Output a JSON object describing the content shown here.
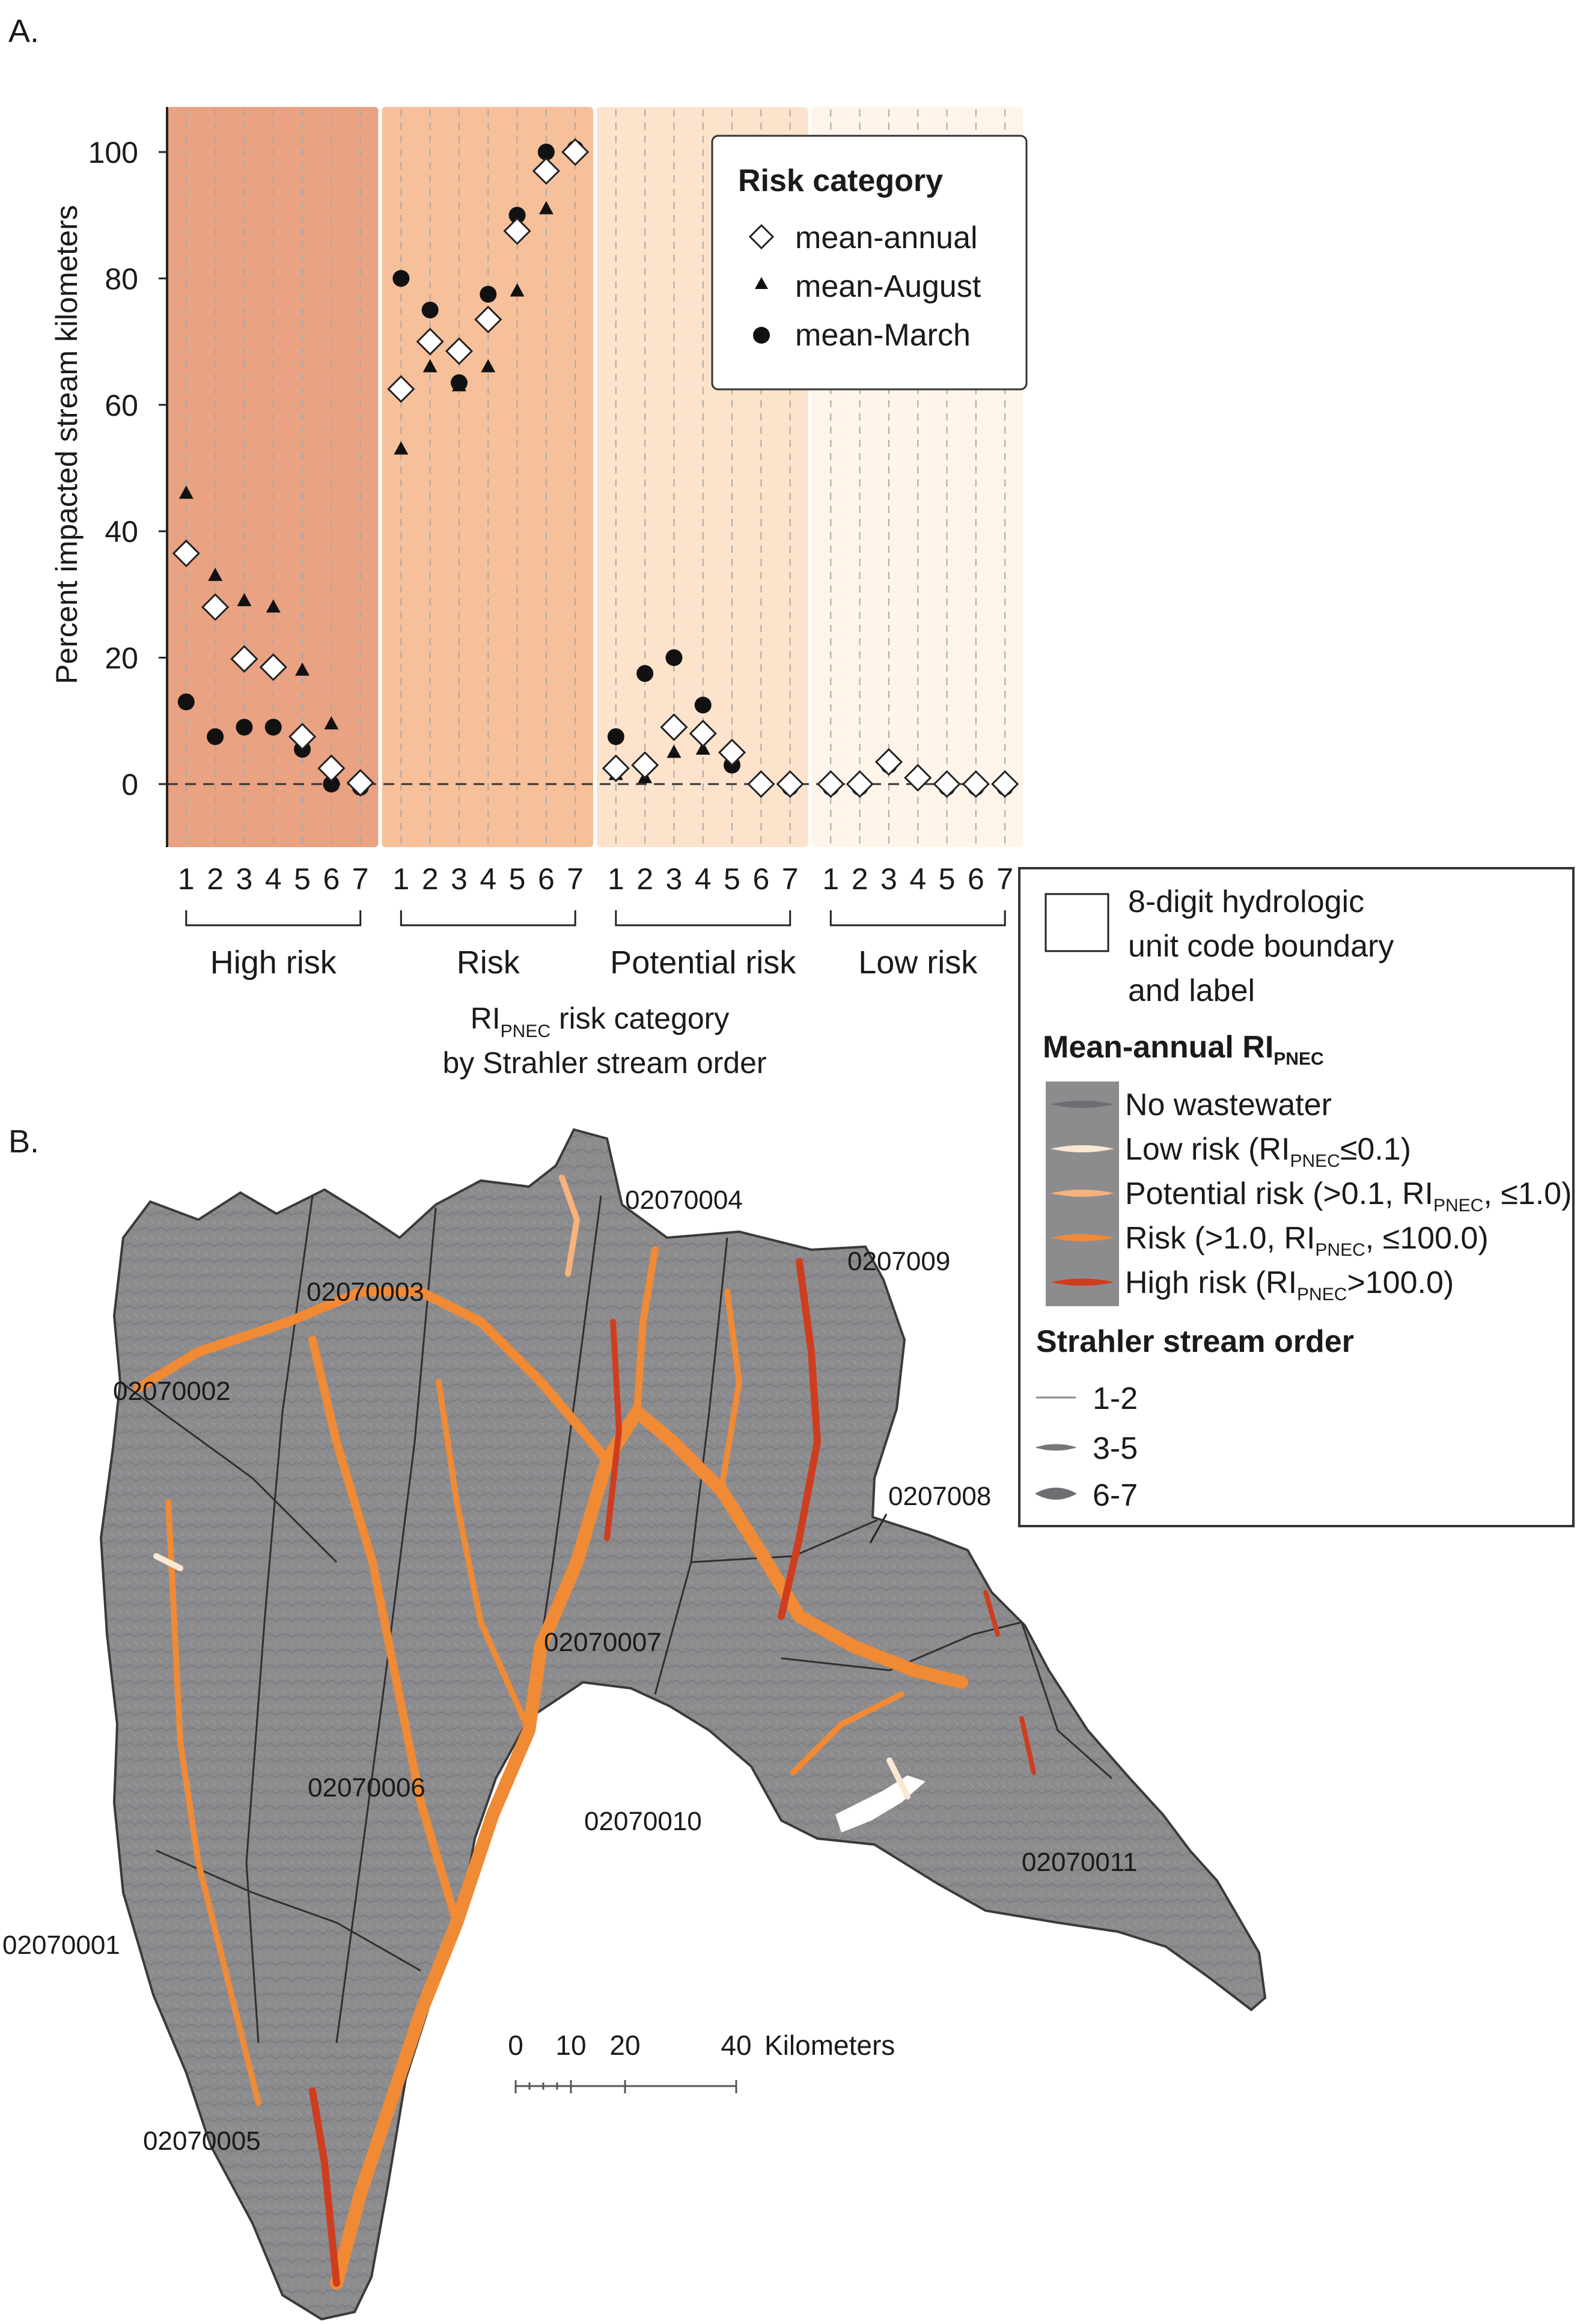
{
  "figure": {
    "panel_a_label": "A.",
    "panel_b_label": "B."
  },
  "chart_data": {
    "type": "scatter",
    "title": "",
    "ylabel": "Percent impacted stream kilometers",
    "xlabel_main": "RI",
    "xlabel_sub": "PNEC",
    "xlabel_suffix": " risk category",
    "xlabel_line2": "by Strahler stream order",
    "ylim": [
      -10,
      110
    ],
    "yticks": [
      0,
      20,
      40,
      60,
      80,
      100
    ],
    "groups": [
      "High risk",
      "Risk",
      "Potential risk",
      "Low risk"
    ],
    "stream_orders": [
      "1",
      "2",
      "3",
      "4",
      "5",
      "6",
      "7"
    ],
    "group_colors": [
      "#e9a282",
      "#f6c09a",
      "#fde3cc",
      "#fef4ea"
    ],
    "legend": {
      "title": "Risk category",
      "position": "top-right",
      "items": [
        "mean-annual",
        "mean-August",
        "mean-March"
      ]
    },
    "series": [
      {
        "name": "mean-annual",
        "marker": "diamond",
        "values": [
          [
            36.5,
            28,
            19.8,
            18.5,
            7.5,
            2.5,
            0.2
          ],
          [
            62.5,
            70,
            68.5,
            73.5,
            87.5,
            97,
            100
          ],
          [
            2.5,
            3,
            9,
            8,
            5,
            0,
            0
          ],
          [
            0,
            0,
            3.5,
            1,
            0,
            0,
            0
          ]
        ]
      },
      {
        "name": "mean-August",
        "marker": "triangle",
        "values": [
          [
            46,
            33,
            29,
            28,
            18,
            9.5,
            1
          ],
          [
            53,
            66,
            63,
            66,
            78,
            91,
            100.5
          ],
          [
            1.5,
            1,
            5,
            5.5,
            4,
            0,
            0
          ],
          [
            0,
            0,
            3.5,
            1,
            0,
            0,
            0
          ]
        ]
      },
      {
        "name": "mean-March",
        "marker": "circle",
        "values": [
          [
            13,
            7.5,
            9,
            9,
            5.5,
            0,
            -0.5
          ],
          [
            80,
            75,
            63.5,
            77.5,
            90,
            100,
            100.5
          ],
          [
            7.5,
            17.5,
            20,
            12.5,
            3,
            0,
            -0.5
          ],
          [
            -0.5,
            -0.5,
            3,
            1,
            -0.5,
            -0.5,
            -0.5
          ]
        ]
      }
    ]
  },
  "map": {
    "huc_labels": [
      "02070004",
      "0207009",
      "02070003",
      "02070002",
      "0207008",
      "02070007",
      "02070006",
      "02070010",
      "02070011",
      "02070001",
      "02070005"
    ],
    "scale_labels": [
      "0",
      "10",
      "20",
      "40",
      "Kilometers"
    ],
    "legend": {
      "boundary_label_lines": [
        "8-digit hydrologic",
        "unit code boundary",
        "and label"
      ],
      "ri_title": "Mean-annual RI",
      "ri_title_sub": "PNEC",
      "classes": [
        {
          "color": "#6e6e72",
          "parts": [
            "No wastewater"
          ]
        },
        {
          "color": "#fbe8d2",
          "parts": [
            "Low risk (RI",
            "PNEC",
            "≤0.1)"
          ]
        },
        {
          "color": "#f8b27a",
          "parts": [
            "Potential risk (>0.1, RI",
            "PNEC",
            ", ≤1.0)"
          ]
        },
        {
          "color": "#f28a36",
          "parts": [
            "Risk (>1.0, RI",
            "PNEC",
            ", ≤100.0)"
          ]
        },
        {
          "color": "#cf3d1f",
          "parts": [
            "High risk (RI",
            "PNEC",
            ">100.0)"
          ]
        }
      ],
      "strahler_title": "Strahler stream order",
      "strahler_items": [
        "1-2",
        "3-5",
        "6-7"
      ]
    }
  }
}
